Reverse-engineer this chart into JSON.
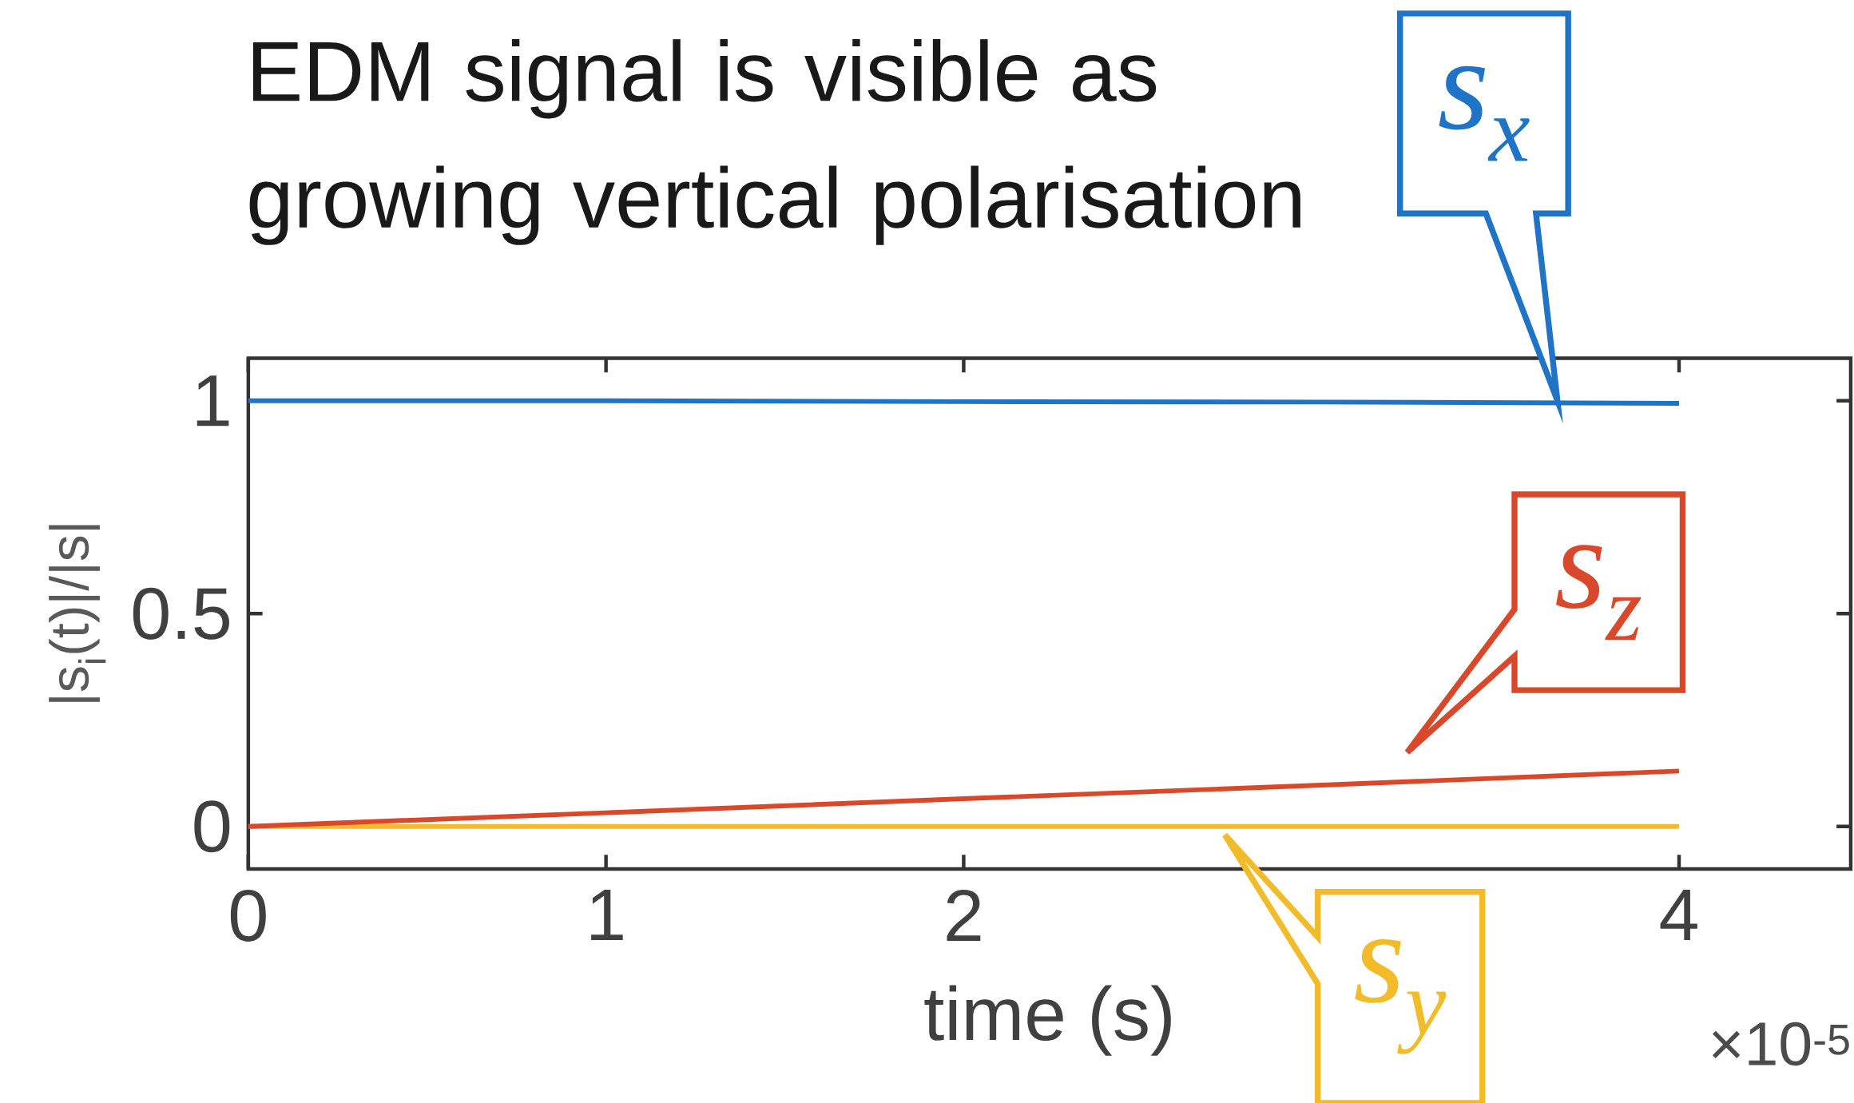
{
  "chart_data": {
    "type": "line",
    "title": "EDM signal is visible as growing vertical polarisation",
    "xlabel": "time (s)",
    "ylabel": "|s$_{i}$(t)|/|s|",
    "annotations": [
      "×10$^{-5}$"
    ],
    "xlim": [
      0,
      4.48
    ],
    "ylim": [
      -0.1,
      1.1
    ],
    "xticks": [
      0,
      1,
      2,
      4
    ],
    "yticks": [
      0,
      0.5,
      1
    ],
    "series": [
      {
        "name": "s$_{x}$",
        "color": "#1f74c8",
        "x": [
          0,
          1,
          2,
          3,
          4
        ],
        "values": [
          1,
          1,
          0.998,
          0.997,
          0.994
        ]
      },
      {
        "name": "s$_{y}$",
        "color": "#f2bb2a",
        "x": [
          0,
          1,
          2,
          3,
          4
        ],
        "values": [
          0,
          0,
          0,
          0,
          0
        ]
      },
      {
        "name": "s$_{z}$",
        "color": "#d9482a",
        "x": [
          0,
          1,
          2,
          3,
          4
        ],
        "values": [
          0,
          0.032,
          0.065,
          0.097,
          0.13
        ]
      }
    ]
  }
}
